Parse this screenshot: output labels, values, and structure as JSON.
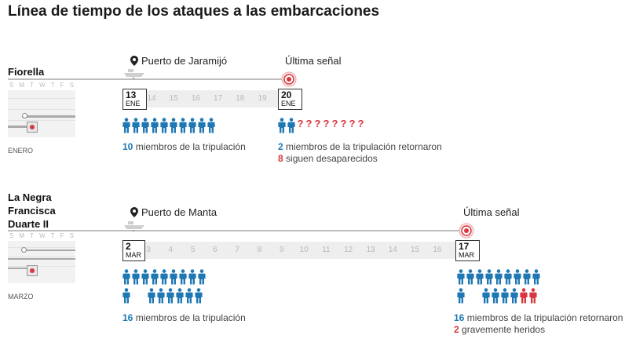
{
  "title": "Línea de tiempo de los ataques a las embarcaciones",
  "colors": {
    "blue": "#1f78b4",
    "red": "#d7373f",
    "line": "#bdbdbd"
  },
  "weekdays": [
    "S",
    "M",
    "T",
    "W",
    "T",
    "F",
    "S"
  ],
  "boats": [
    {
      "name": "Fiorella",
      "port": "Puerto de Jaramijó",
      "signal": "Última señal",
      "month": "ENERO",
      "start": {
        "day": "13",
        "mon": "ENE"
      },
      "end": {
        "day": "20",
        "mon": "ENE"
      },
      "days": [
        "14",
        "15",
        "16",
        "17",
        "18",
        "19"
      ],
      "crew_icons": 10,
      "returned_icons": 2,
      "missing_icons": 8,
      "left_stat_num": "10",
      "left_stat_text": " miembros de la tripulación",
      "right_stat_num": "2",
      "right_stat_text": " miembros de la tripulación retornaron",
      "right_stat2_num": "8",
      "right_stat2_text": " siguen desaparecidos"
    },
    {
      "name": "La Negra Francisca Duarte II",
      "name_lines": [
        "La Negra",
        "Francisca",
        "Duarte II"
      ],
      "port": "Puerto de Manta",
      "signal": "Última señal",
      "month": "MARZO",
      "start": {
        "day": "2",
        "mon": "MAR"
      },
      "end": {
        "day": "17",
        "mon": "MAR"
      },
      "days": [
        "3",
        "4",
        "5",
        "6",
        "7",
        "8",
        "9",
        "10",
        "11",
        "12",
        "13",
        "14",
        "15",
        "16"
      ],
      "crew_icons": 16,
      "returned_icons": 14,
      "injured_icons": 2,
      "left_stat_num": "16",
      "left_stat_text": " miembros de la tripulación",
      "right_stat_num": "16",
      "right_stat_text": " miembros de la tripulación retornaron",
      "right_stat2_num": "2",
      "right_stat2_text": " gravemente heridos"
    }
  ]
}
